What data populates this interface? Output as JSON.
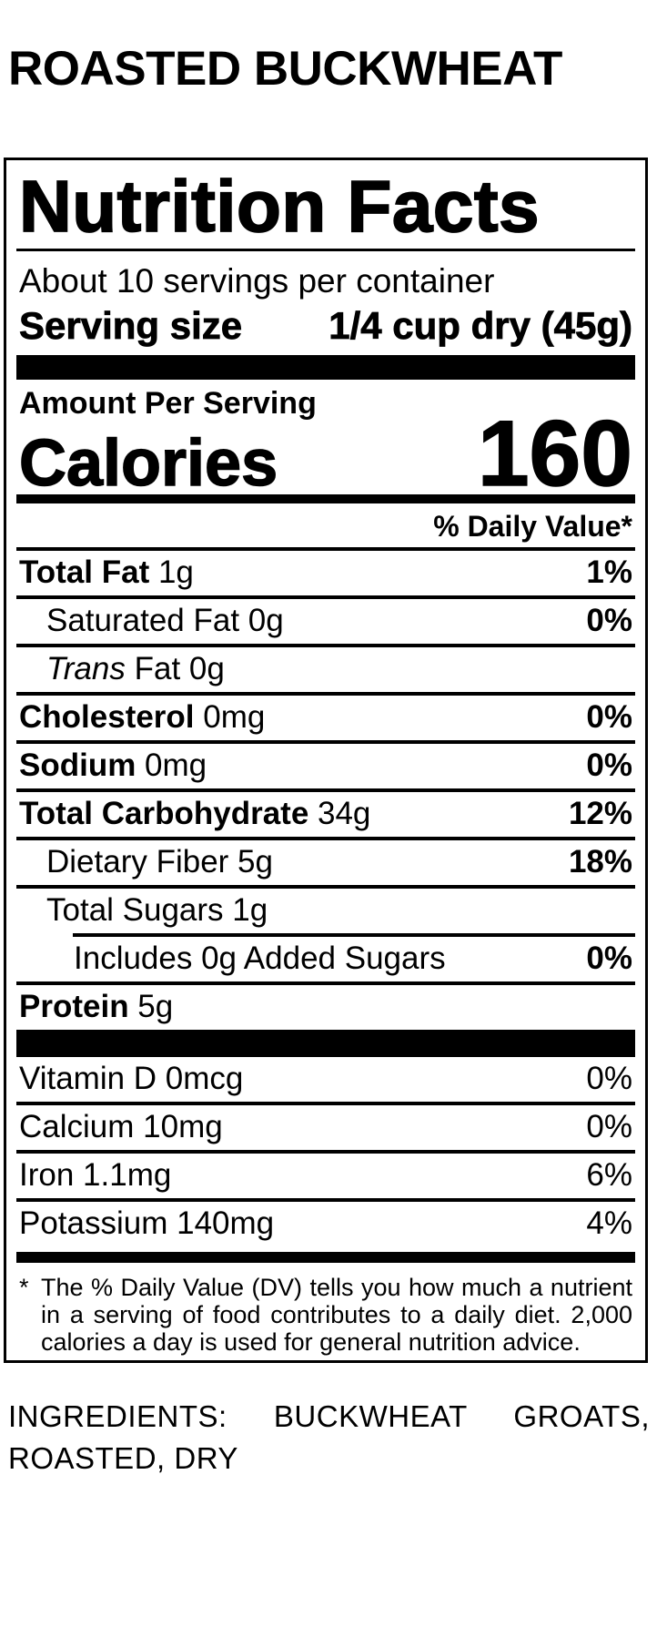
{
  "product_title": "ROASTED BUCKWHEAT",
  "panel": {
    "title": "Nutrition Facts",
    "servings_per_container": "About 10 servings per container",
    "serving_size": {
      "label": "Serving size",
      "value": "1/4 cup dry (45g)"
    },
    "amount_per_serving": "Amount Per Serving",
    "calories": {
      "label": "Calories",
      "value": "160"
    },
    "daily_value_header": "% Daily Value*",
    "nutrient_rows": [
      {
        "parts": [
          {
            "text": "Total Fat",
            "bold": true
          },
          {
            "text": " 1g"
          }
        ],
        "percent": "1%",
        "percent_bold": true,
        "indent": 0,
        "divider": "full"
      },
      {
        "parts": [
          {
            "text": "Saturated Fat 0g"
          }
        ],
        "percent": "0%",
        "percent_bold": true,
        "indent": 1,
        "divider": "full"
      },
      {
        "parts": [
          {
            "text": "Trans",
            "italic": true
          },
          {
            "text": " Fat 0g"
          }
        ],
        "percent": "",
        "percent_bold": false,
        "indent": 1,
        "divider": "full"
      },
      {
        "parts": [
          {
            "text": "Cholesterol",
            "bold": true
          },
          {
            "text": " 0mg"
          }
        ],
        "percent": "0%",
        "percent_bold": true,
        "indent": 0,
        "divider": "full"
      },
      {
        "parts": [
          {
            "text": "Sodium",
            "bold": true
          },
          {
            "text": " 0mg"
          }
        ],
        "percent": "0%",
        "percent_bold": true,
        "indent": 0,
        "divider": "full"
      },
      {
        "parts": [
          {
            "text": "Total Carbohydrate",
            "bold": true
          },
          {
            "text": " 34g"
          }
        ],
        "percent": "12%",
        "percent_bold": true,
        "indent": 0,
        "divider": "full"
      },
      {
        "parts": [
          {
            "text": "Dietary Fiber 5g"
          }
        ],
        "percent": "18%",
        "percent_bold": true,
        "indent": 1,
        "divider": "full"
      },
      {
        "parts": [
          {
            "text": "Total Sugars 1g"
          }
        ],
        "percent": "",
        "percent_bold": false,
        "indent": 1,
        "divider": "indent"
      },
      {
        "parts": [
          {
            "text": "Includes 0g Added Sugars"
          }
        ],
        "percent": "0%",
        "percent_bold": true,
        "indent": 2,
        "divider": "full"
      },
      {
        "parts": [
          {
            "text": "Protein",
            "bold": true
          },
          {
            "text": " 5g"
          }
        ],
        "percent": "",
        "percent_bold": false,
        "indent": 0,
        "divider": "none"
      }
    ],
    "vitamin_rows": [
      {
        "parts": [
          {
            "text": "Vitamin D 0mcg"
          }
        ],
        "percent": "0%",
        "percent_bold": false,
        "indent": 0,
        "divider": "full"
      },
      {
        "parts": [
          {
            "text": "Calcium 10mg"
          }
        ],
        "percent": "0%",
        "percent_bold": false,
        "indent": 0,
        "divider": "full"
      },
      {
        "parts": [
          {
            "text": "Iron 1.1mg"
          }
        ],
        "percent": "6%",
        "percent_bold": false,
        "indent": 0,
        "divider": "full"
      },
      {
        "parts": [
          {
            "text": "Potassium 140mg"
          }
        ],
        "percent": "4%",
        "percent_bold": false,
        "indent": 0,
        "divider": "none"
      }
    ],
    "footnote": {
      "asterisk": "*",
      "text": "The % Daily Value (DV) tells you how much a nutrient in a serving of food contributes to a daily diet. 2,000 calories a day is used for general nutrition advice."
    }
  },
  "ingredients": "INGREDIENTS: BUCKWHEAT GROATS, ROASTED, DRY",
  "colors": {
    "text": "#000000",
    "background": "#ffffff"
  }
}
